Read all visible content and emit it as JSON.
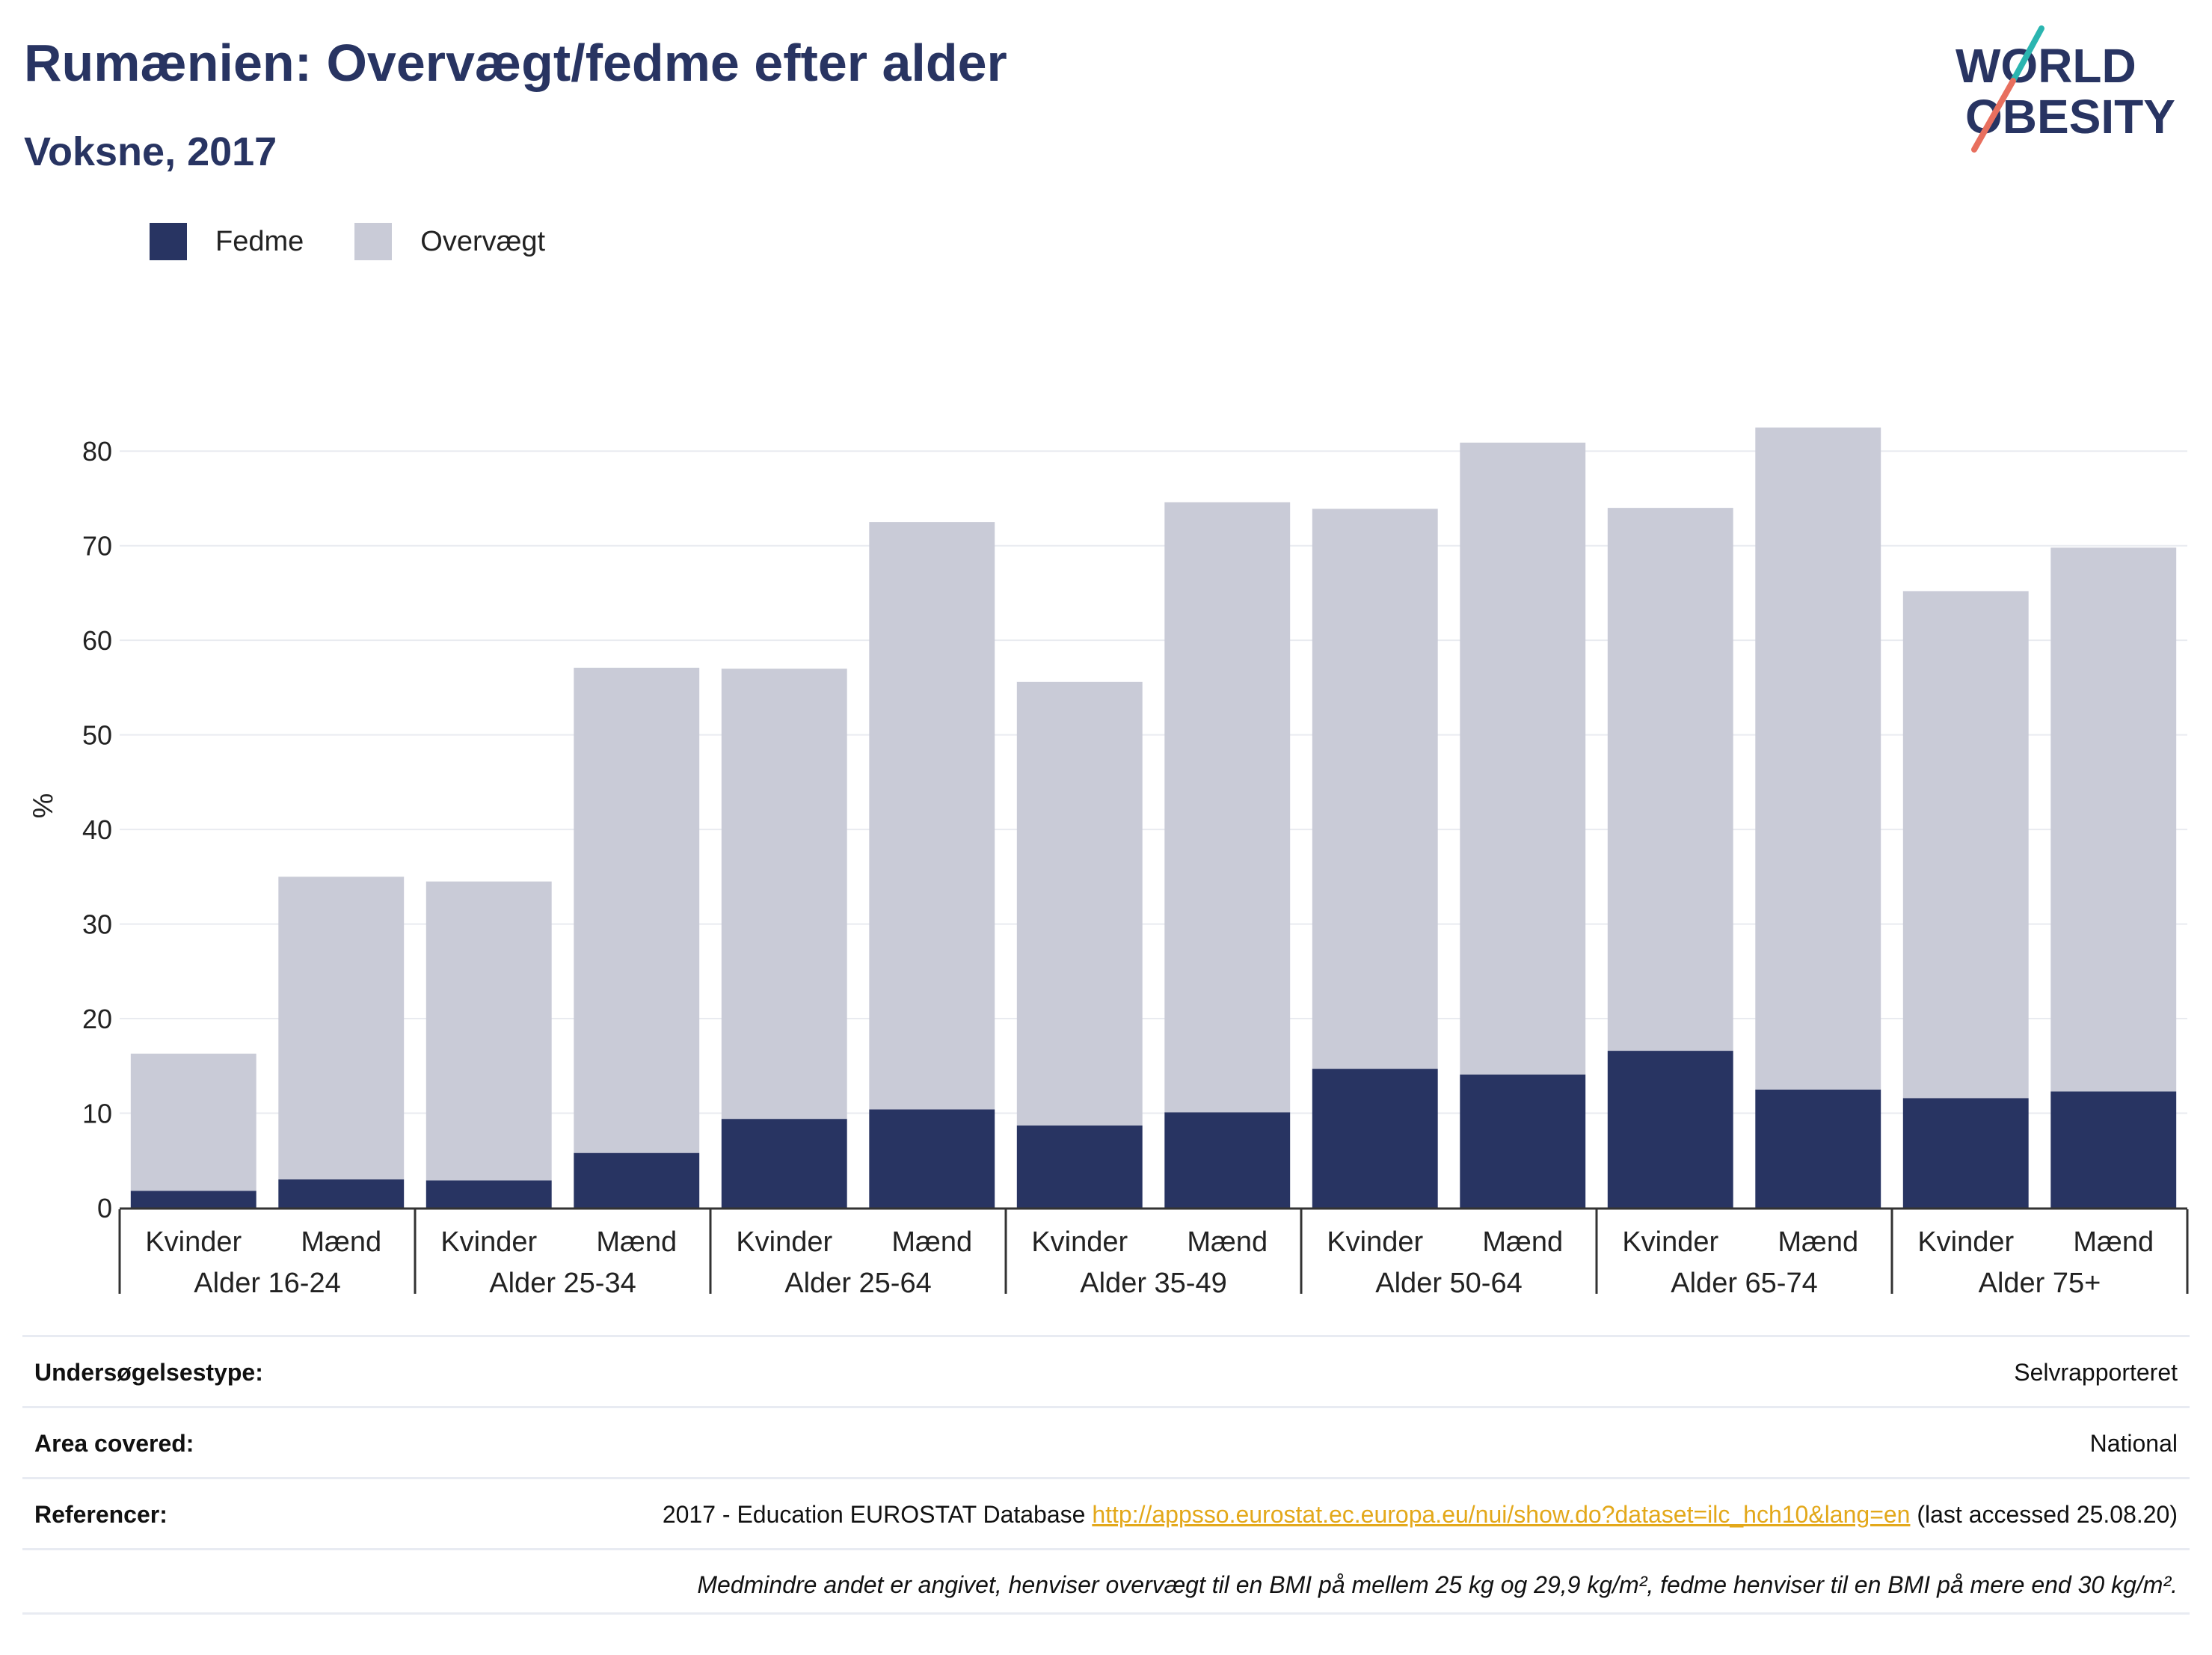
{
  "header": {
    "title": "Rumænien: Overvægt/fedme efter alder",
    "subtitle": "Voksne, 2017"
  },
  "logo": {
    "line1": "WORLD",
    "line2": "OBESITY"
  },
  "legend": [
    {
      "label": "Fedme",
      "color": "#283462"
    },
    {
      "label": "Overvægt",
      "color": "#c9cbd7"
    }
  ],
  "chart_data": {
    "type": "bar",
    "stacked": true,
    "ylabel": "%",
    "ylim": [
      0,
      85
    ],
    "yticks": [
      0,
      10,
      20,
      30,
      40,
      50,
      60,
      70,
      80
    ],
    "grid": true,
    "legend_position": "top-left",
    "groups": [
      "Alder 16-24",
      "Alder 25-34",
      "Alder 25-64",
      "Alder 35-49",
      "Alder 50-64",
      "Alder 65-74",
      "Alder 75+"
    ],
    "categories": [
      "Kvinder",
      "Mænd",
      "Kvinder",
      "Mænd",
      "Kvinder",
      "Mænd",
      "Kvinder",
      "Mænd",
      "Kvinder",
      "Mænd",
      "Kvinder",
      "Mænd",
      "Kvinder",
      "Mænd"
    ],
    "series": [
      {
        "name": "Fedme",
        "color": "#283462",
        "values": [
          1.8,
          3.0,
          2.9,
          5.8,
          9.4,
          10.4,
          8.7,
          10.1,
          14.7,
          14.1,
          16.6,
          12.5,
          11.6,
          12.3
        ]
      },
      {
        "name": "Overvægt",
        "color": "#c9cbd7",
        "values": [
          14.5,
          32.0,
          31.6,
          51.3,
          47.6,
          62.1,
          46.9,
          64.5,
          59.2,
          66.8,
          57.4,
          70.0,
          53.6,
          57.5
        ]
      }
    ]
  },
  "meta": [
    {
      "label": "Undersøgelsestype:",
      "value": "Selvrapporteret"
    },
    {
      "label": "Area covered:",
      "value": "National"
    },
    {
      "label": "Referencer:",
      "value_prefix": "2017 - Education EUROSTAT Database ",
      "link": "http://appsso.eurostat.ec.europa.eu/nui/show.do?dataset=ilc_hch10&lang=en",
      "value_suffix": " (last accessed 25.08.20)"
    }
  ],
  "footnote": "Medmindre andet er angivet, henviser overvægt til en BMI på mellem 25 kg og 29,9 kg/m², fedme henviser til en BMI på mere end 30 kg/m²."
}
